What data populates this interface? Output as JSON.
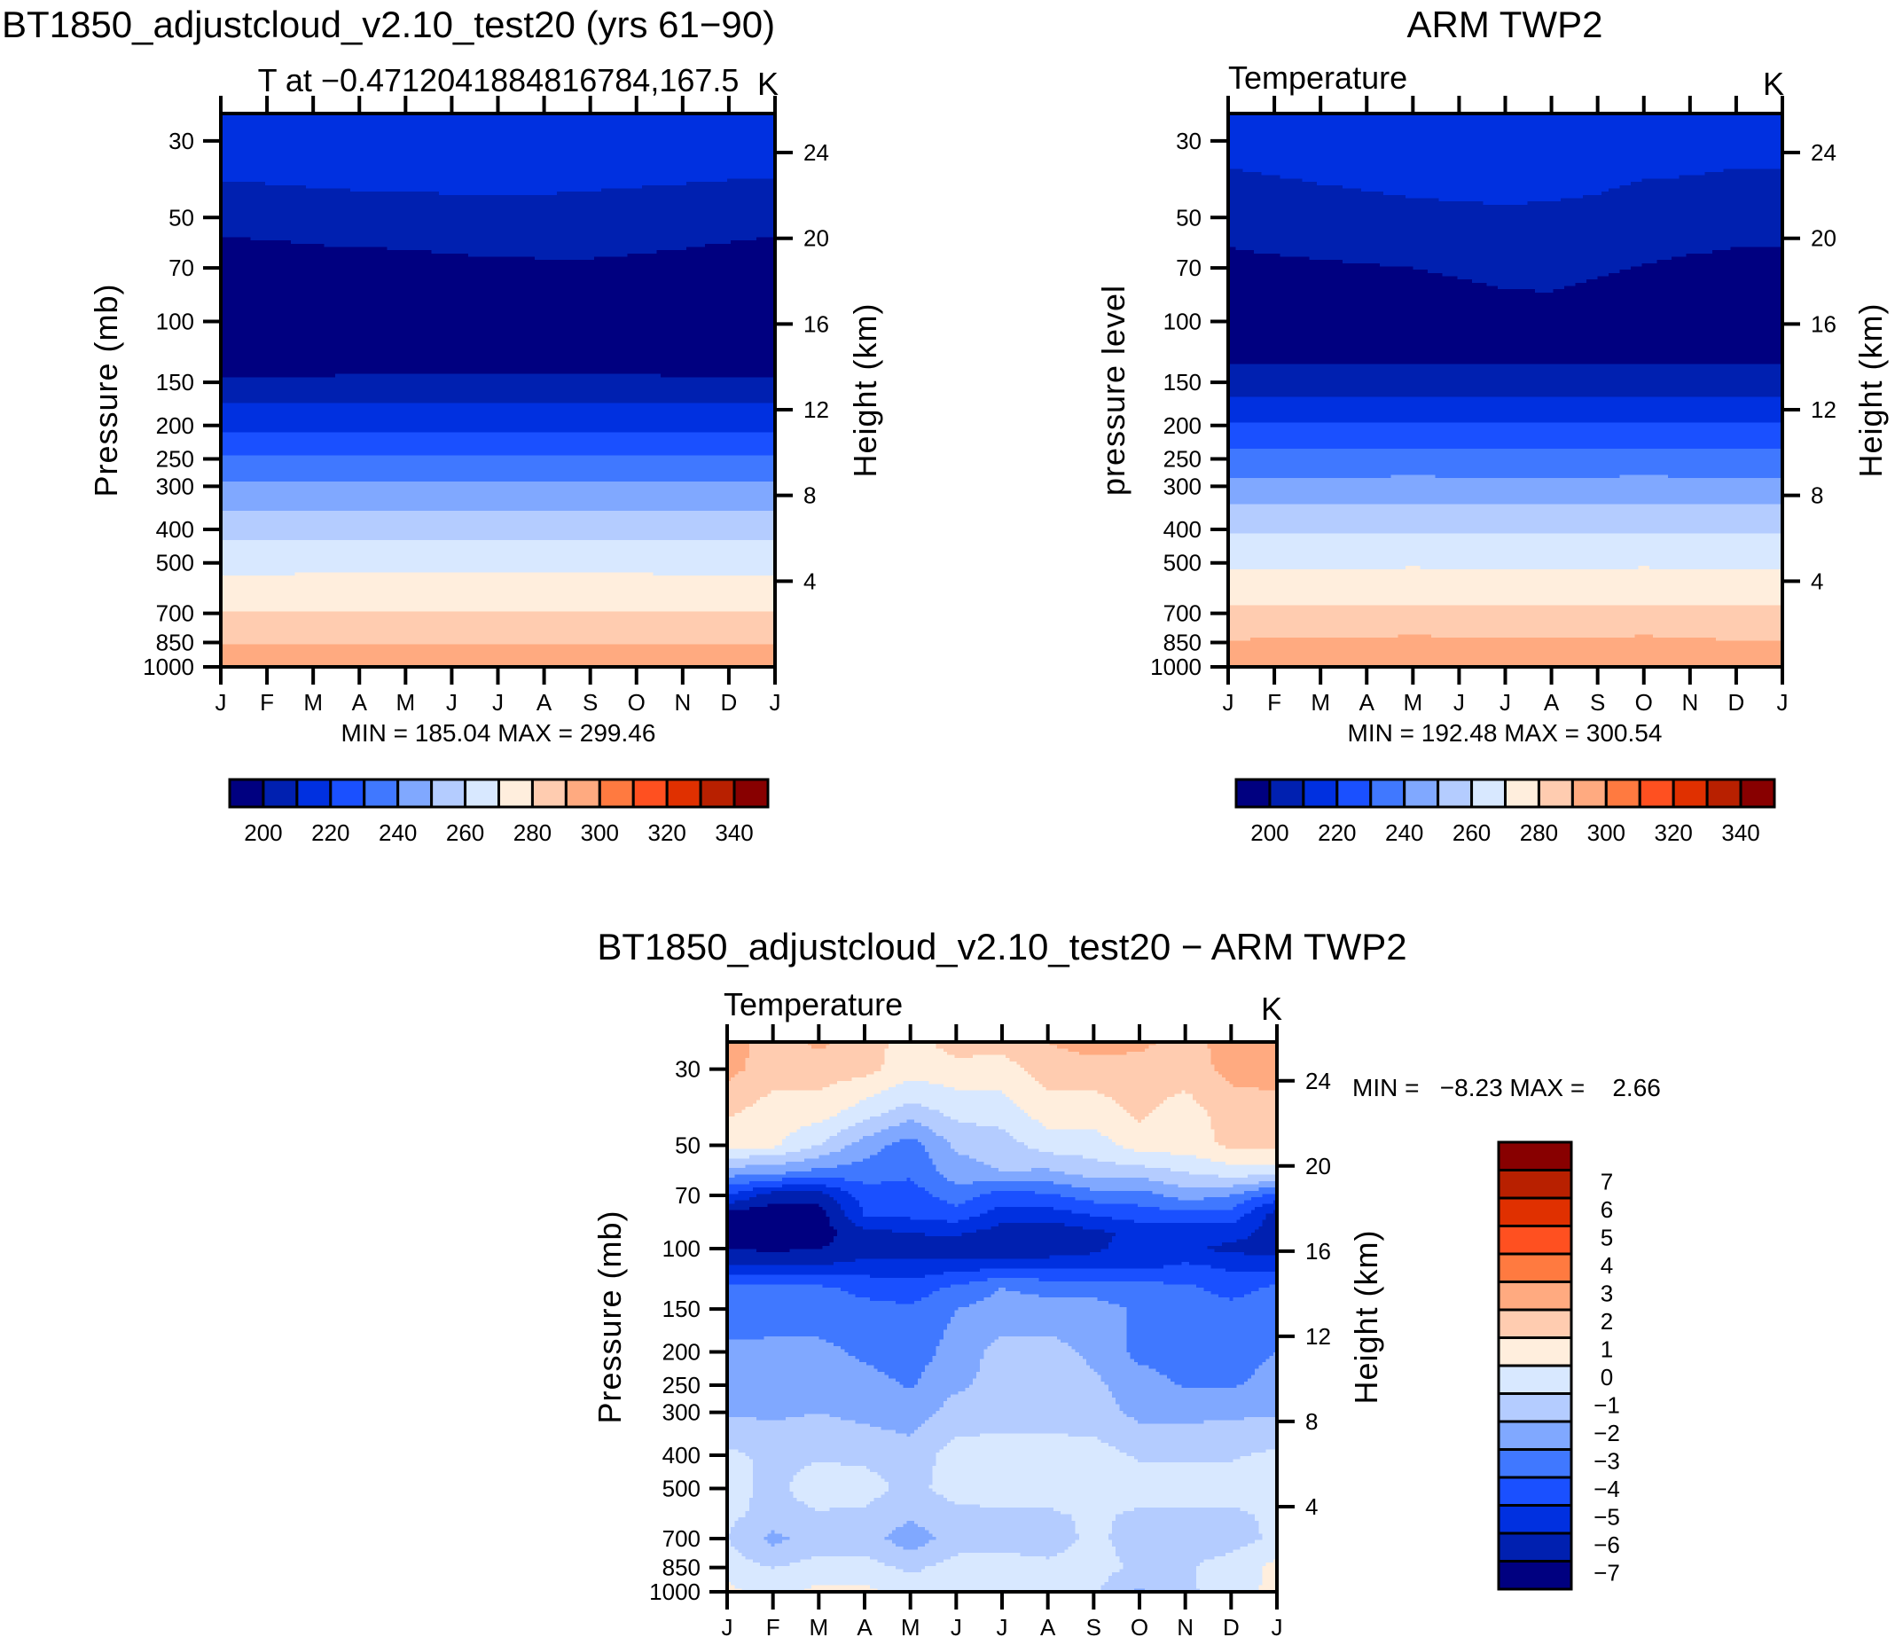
{
  "panels": {
    "model": {
      "title": "BT1850_adjustcloud_v2.10_test20 (yrs 61−90)",
      "subtitle": "T at −0.4712041884816784,167.5",
      "units": "K",
      "ylabel": "Pressure (mb)",
      "y2label": "Height (km)",
      "stats": "MIN = 185.04 MAX = 299.46"
    },
    "obs": {
      "title": "ARM TWP2",
      "subtitle": "Temperature",
      "units": "K",
      "ylabel": "pressure level",
      "y2label": "Height (km)",
      "stats": "MIN = 192.48 MAX = 300.54"
    },
    "diff": {
      "title": "BT1850_adjustcloud_v2.10_test20 − ARM TWP2",
      "subtitle": "Temperature",
      "units": "K",
      "ylabel": "Pressure (mb)",
      "y2label": "Height (km)",
      "stats": "MIN =   −8.23 MAX =    2.66"
    }
  },
  "chart_data": [
    {
      "id": "model",
      "type": "heatmap",
      "subtype": "filled-contour",
      "title": "BT1850_adjustcloud_v2.10_test20 (yrs 61−90)",
      "x_tick_labels": [
        "J",
        "F",
        "M",
        "A",
        "M",
        "J",
        "J",
        "A",
        "S",
        "O",
        "N",
        "D",
        "J"
      ],
      "y_tick_labels": [
        30,
        50,
        70,
        100,
        150,
        200,
        250,
        300,
        400,
        500,
        700,
        850,
        1000
      ],
      "y2_tick_labels": [
        4,
        8,
        12,
        16,
        20,
        24
      ],
      "ylim_mb": [
        1000,
        25
      ],
      "colorbar_levels": [
        200,
        210,
        220,
        230,
        240,
        250,
        260,
        270,
        280,
        290,
        300,
        310,
        320,
        330,
        340
      ],
      "colorbar_labels": [
        "200",
        "220",
        "240",
        "260",
        "280",
        "300",
        "320",
        "340"
      ],
      "min": 185.04,
      "max": 299.46,
      "isotherm_anchors": [
        {
          "T": 216,
          "p": [
            25,
            25,
            25,
            25,
            25,
            25,
            25,
            25,
            25,
            25,
            25,
            25,
            25
          ]
        },
        {
          "T": 210,
          "p": [
            39,
            40,
            41,
            42,
            42,
            43,
            43,
            43,
            42,
            41,
            40,
            39,
            39
          ]
        },
        {
          "T": 200,
          "p": [
            57,
            58,
            60,
            61,
            62,
            64,
            65,
            66,
            66,
            64,
            62,
            59,
            57
          ]
        },
        {
          "T": 185,
          "p": [
            95,
            95,
            95,
            95,
            95,
            95,
            95,
            95,
            95,
            95,
            95,
            95,
            95
          ]
        },
        {
          "T": 200,
          "p": [
            144,
            144,
            144,
            143,
            142,
            142,
            141,
            141,
            142,
            143,
            144,
            144,
            144
          ]
        },
        {
          "T": 210,
          "p": [
            174,
            174,
            174,
            174,
            174,
            174,
            174,
            174,
            174,
            174,
            174,
            174,
            174
          ]
        },
        {
          "T": 220,
          "p": [
            208,
            208,
            208,
            208,
            208,
            208,
            208,
            208,
            208,
            208,
            208,
            208,
            208
          ]
        },
        {
          "T": 230,
          "p": [
            246,
            246,
            246,
            246,
            246,
            246,
            246,
            246,
            246,
            246,
            246,
            246,
            246
          ]
        },
        {
          "T": 240,
          "p": [
            289,
            289,
            289,
            289,
            289,
            289,
            289,
            289,
            289,
            289,
            289,
            289,
            289
          ]
        },
        {
          "T": 250,
          "p": [
            351,
            351,
            351,
            351,
            351,
            351,
            351,
            351,
            351,
            351,
            351,
            351,
            351
          ]
        },
        {
          "T": 260,
          "p": [
            429,
            429,
            429,
            429,
            429,
            429,
            429,
            429,
            429,
            429,
            429,
            429,
            429
          ]
        },
        {
          "T": 270,
          "p": [
            542,
            540,
            538,
            535,
            532,
            530,
            530,
            532,
            535,
            538,
            540,
            542,
            542
          ]
        },
        {
          "T": 280,
          "p": [
            690,
            690,
            690,
            690,
            690,
            690,
            690,
            690,
            690,
            690,
            690,
            690,
            690
          ]
        },
        {
          "T": 290,
          "p": [
            858,
            858,
            858,
            858,
            858,
            858,
            858,
            858,
            858,
            858,
            858,
            858,
            858
          ]
        },
        {
          "T": 299,
          "p": [
            1000,
            1000,
            1000,
            1000,
            1000,
            1000,
            1000,
            1000,
            1000,
            1000,
            1000,
            1000,
            1000
          ]
        }
      ]
    },
    {
      "id": "obs",
      "type": "heatmap",
      "subtype": "filled-contour",
      "title": "ARM TWP2",
      "x_tick_labels": [
        "J",
        "F",
        "M",
        "A",
        "M",
        "J",
        "J",
        "A",
        "S",
        "O",
        "N",
        "D",
        "J"
      ],
      "y_tick_labels": [
        30,
        50,
        70,
        100,
        150,
        200,
        250,
        300,
        400,
        500,
        700,
        850,
        1000
      ],
      "y2_tick_labels": [
        4,
        8,
        12,
        16,
        20,
        24
      ],
      "ylim_mb": [
        1000,
        25
      ],
      "colorbar_levels": [
        200,
        210,
        220,
        230,
        240,
        250,
        260,
        270,
        280,
        290,
        300,
        310,
        320,
        330,
        340
      ],
      "colorbar_labels": [
        "200",
        "220",
        "240",
        "260",
        "280",
        "300",
        "320",
        "340"
      ],
      "min": 192.48,
      "max": 300.54,
      "isotherm_anchors": [
        {
          "T": 217,
          "p": [
            25,
            25,
            25,
            25,
            25,
            25,
            25,
            25,
            25,
            25,
            25,
            25,
            25
          ]
        },
        {
          "T": 210,
          "p": [
            36,
            38,
            40,
            42,
            44,
            45,
            46,
            45,
            43,
            39,
            38,
            36,
            36
          ]
        },
        {
          "T": 200,
          "p": [
            61,
            64,
            66,
            68,
            70,
            75,
            81,
            82,
            75,
            68,
            64,
            61,
            61
          ]
        },
        {
          "T": 193,
          "p": [
            100,
            101,
            102,
            103,
            104,
            105,
            106,
            107,
            106,
            104,
            102,
            100,
            100
          ]
        },
        {
          "T": 200,
          "p": [
            132,
            132,
            132,
            132,
            132,
            132,
            133,
            133,
            133,
            132,
            132,
            132,
            132
          ]
        },
        {
          "T": 210,
          "p": [
            164,
            164,
            164,
            164,
            164,
            164,
            164,
            164,
            164,
            164,
            164,
            164,
            164
          ]
        },
        {
          "T": 220,
          "p": [
            198,
            198,
            198,
            198,
            198,
            198,
            198,
            198,
            198,
            198,
            198,
            198,
            198
          ]
        },
        {
          "T": 230,
          "p": [
            236,
            236,
            236,
            236,
            236,
            236,
            236,
            236,
            236,
            236,
            236,
            236,
            236
          ]
        },
        {
          "T": 240,
          "p": [
            282,
            282,
            282,
            282,
            280,
            282,
            282,
            282,
            282,
            280,
            282,
            282,
            282
          ]
        },
        {
          "T": 250,
          "p": [
            340,
            340,
            340,
            340,
            338,
            340,
            340,
            340,
            340,
            338,
            340,
            340,
            340
          ]
        },
        {
          "T": 260,
          "p": [
            415,
            415,
            415,
            415,
            412,
            415,
            415,
            415,
            415,
            412,
            415,
            415,
            415
          ]
        },
        {
          "T": 270,
          "p": [
            525,
            525,
            522,
            522,
            515,
            522,
            525,
            522,
            522,
            515,
            522,
            525,
            525
          ]
        },
        {
          "T": 280,
          "p": [
            668,
            662,
            665,
            665,
            655,
            662,
            660,
            662,
            665,
            655,
            662,
            668,
            668
          ]
        },
        {
          "T": 290,
          "p": [
            837,
            825,
            830,
            830,
            805,
            825,
            820,
            830,
            830,
            810,
            825,
            837,
            837
          ]
        },
        {
          "T": 298,
          "p": [
            1000,
            1000,
            1000,
            1000,
            1000,
            1000,
            1000,
            1000,
            1000,
            1000,
            1000,
            1000,
            1000
          ]
        }
      ]
    },
    {
      "id": "diff",
      "type": "heatmap",
      "subtype": "filled-contour",
      "title": "BT1850_adjustcloud_v2.10_test20 − ARM TWP2",
      "x_tick_labels": [
        "J",
        "F",
        "M",
        "A",
        "M",
        "J",
        "J",
        "A",
        "S",
        "O",
        "N",
        "D",
        "J"
      ],
      "y_tick_labels": [
        30,
        50,
        70,
        100,
        150,
        200,
        250,
        300,
        400,
        500,
        700,
        850,
        1000
      ],
      "y2_tick_labels": [
        4,
        8,
        12,
        16,
        20,
        24
      ],
      "ylim_mb": [
        1000,
        25
      ],
      "colorbar_levels": [
        -7,
        -6,
        -5,
        -4,
        -3,
        -2,
        -1,
        0,
        1,
        2,
        3,
        4,
        5,
        6,
        7
      ],
      "colorbar_labels": [
        "−7",
        "−6",
        "−5",
        "−4",
        "−3",
        "−2",
        "−1",
        "0",
        "1",
        "2",
        "3",
        "4",
        "5",
        "6",
        "7"
      ],
      "min": -8.23,
      "max": 2.66,
      "pressure_levels_mb": [
        25,
        30,
        40,
        50,
        60,
        70,
        80,
        90,
        100,
        110,
        130,
        150,
        200,
        250,
        300,
        400,
        500,
        600,
        700,
        850,
        1000
      ],
      "values": [
        [
          2.5,
          1.5,
          2.2,
          1.5,
          0.5,
          1.5,
          1.5,
          2.0,
          2.5,
          2.3,
          1.5,
          2.5,
          2.5
        ],
        [
          2.3,
          1.5,
          1.5,
          1.3,
          0.5,
          0.6,
          0.5,
          1.5,
          1.5,
          1.5,
          1.5,
          2.3,
          2.5
        ],
        [
          1.2,
          0.5,
          0.5,
          -0.5,
          -1.5,
          -0.7,
          -0.5,
          0.5,
          0.5,
          1.2,
          0.5,
          1.5,
          1.5
        ],
        [
          0.2,
          0.2,
          -1.0,
          -2.5,
          -3.5,
          -1.8,
          -1.5,
          -0.5,
          -0.5,
          0.5,
          0.5,
          1.2,
          1.2
        ],
        [
          -2.5,
          -2.8,
          -3.3,
          -3.5,
          -3.8,
          -2.5,
          -2.0,
          -2.2,
          -1.5,
          -1.5,
          -1.0,
          -0.5,
          -0.5
        ],
        [
          -5.0,
          -6.5,
          -6.5,
          -4.5,
          -4.5,
          -3.5,
          -4.5,
          -4.2,
          -3.5,
          -3.5,
          -2.5,
          -3.0,
          -4.5
        ],
        [
          -7.5,
          -7.8,
          -7.5,
          -5.0,
          -4.8,
          -4.5,
          -5.5,
          -5.5,
          -5.0,
          -4.5,
          -4.5,
          -4.5,
          -6.5
        ],
        [
          -7.5,
          -7.8,
          -7.5,
          -6.3,
          -6.0,
          -5.8,
          -6.5,
          -6.8,
          -6.2,
          -5.8,
          -5.5,
          -5.5,
          -6.5
        ],
        [
          -7.0,
          -7.2,
          -7.0,
          -6.5,
          -6.5,
          -6.9,
          -6.6,
          -6.6,
          -6.2,
          -5.5,
          -5.8,
          -6.3,
          -6.6
        ],
        [
          -6.2,
          -6.3,
          -6.2,
          -5.8,
          -5.8,
          -5.7,
          -5.6,
          -5.6,
          -5.6,
          -5.5,
          -5.0,
          -5.3,
          -5.5
        ],
        [
          -3.8,
          -3.7,
          -3.8,
          -4.3,
          -4.6,
          -3.8,
          -3.0,
          -3.3,
          -3.3,
          -3.6,
          -3.8,
          -4.4,
          -3.8
        ],
        [
          -3.7,
          -3.6,
          -3.6,
          -3.7,
          -3.8,
          -3.0,
          -2.6,
          -2.6,
          -2.7,
          -3.1,
          -3.5,
          -3.7,
          -3.5
        ],
        [
          -2.7,
          -2.7,
          -2.7,
          -3.2,
          -3.5,
          -2.6,
          -1.6,
          -1.6,
          -2.2,
          -3.3,
          -3.5,
          -3.5,
          -3.0
        ],
        [
          -2.5,
          -2.5,
          -2.5,
          -2.6,
          -3.1,
          -2.2,
          -1.6,
          -1.6,
          -1.8,
          -2.5,
          -3.1,
          -3.1,
          -2.6
        ],
        [
          -2.1,
          -2.2,
          -2.0,
          -2.3,
          -2.6,
          -1.5,
          -1.4,
          -1.4,
          -1.5,
          -2.3,
          -2.3,
          -2.2,
          -2.1
        ],
        [
          -0.8,
          -1.2,
          -1.1,
          -1.2,
          -1.5,
          -0.6,
          -0.6,
          -0.6,
          -0.6,
          -1.1,
          -1.1,
          -1.1,
          -0.8
        ],
        [
          -0.7,
          -1.2,
          -0.6,
          -0.6,
          -1.3,
          -0.6,
          -0.5,
          -0.5,
          -0.3,
          -0.6,
          -0.6,
          -0.6,
          -0.5
        ],
        [
          -0.8,
          -1.3,
          -1.1,
          -1.2,
          -1.8,
          -1.3,
          -1.2,
          -1.2,
          -0.8,
          -1.2,
          -1.2,
          -1.2,
          -0.8
        ],
        [
          -1.0,
          -2.3,
          -1.5,
          -1.5,
          -2.6,
          -1.5,
          -1.4,
          -1.4,
          -0.8,
          -1.4,
          -1.4,
          -1.4,
          -0.8
        ],
        [
          -0.5,
          -1.0,
          -0.6,
          -0.6,
          -1.2,
          -0.6,
          -0.6,
          -0.8,
          -0.6,
          -1.2,
          -1.1,
          -0.6,
          0.3
        ],
        [
          0.3,
          -0.5,
          0.3,
          0.3,
          -0.5,
          -0.5,
          -0.5,
          -0.6,
          -0.8,
          -2.2,
          -1.2,
          -0.5,
          0.3
        ]
      ]
    }
  ],
  "colors": [
    "#000080",
    "#0020b0",
    "#0030e0",
    "#1a50ff",
    "#4078ff",
    "#80a8ff",
    "#b4ccff",
    "#d8e8ff",
    "#ffeedd",
    "#ffccb0",
    "#ffaa80",
    "#ff7a40",
    "#ff5020",
    "#e03000",
    "#b82000",
    "#880000"
  ]
}
